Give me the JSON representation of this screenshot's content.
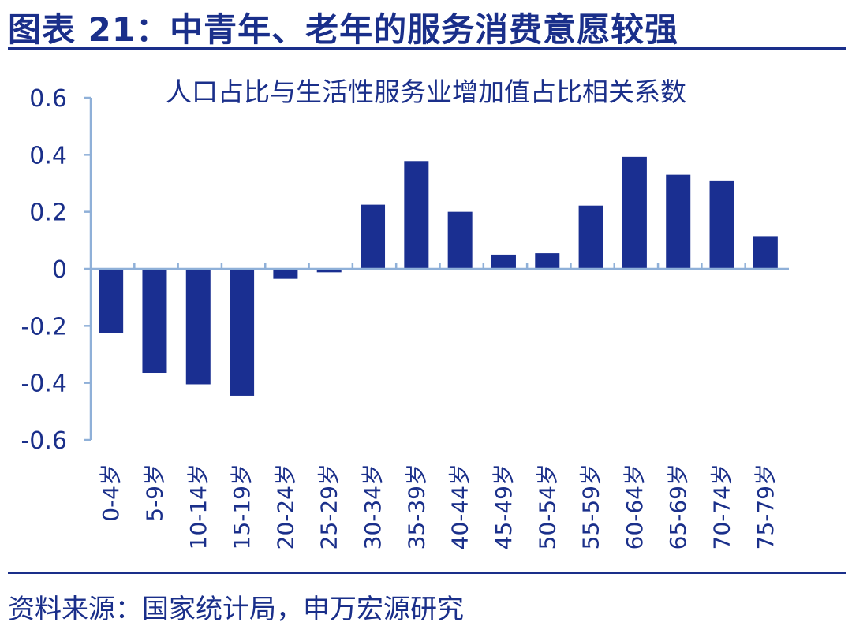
{
  "header": {
    "figure_title": "图表 21：中青年、老年的服务消费意愿较强"
  },
  "footer": {
    "source": "资料来源：国家统计局，申万宏源研究"
  },
  "colors": {
    "bar": "#1a2f91",
    "text": "#1a2f8a",
    "axis": "#8fb0d8"
  },
  "chart_data": {
    "type": "bar",
    "title": "人口占比与生活性服务业增加值占比相关系数",
    "categories": [
      "0-4岁",
      "5-9岁",
      "10-14岁",
      "15-19岁",
      "20-24岁",
      "25-29岁",
      "30-34岁",
      "35-39岁",
      "40-44岁",
      "45-49岁",
      "50-54岁",
      "55-59岁",
      "60-64岁",
      "65-69岁",
      "70-74岁",
      "75-79岁"
    ],
    "values": [
      -0.225,
      -0.365,
      -0.405,
      -0.445,
      -0.035,
      -0.012,
      0.225,
      0.378,
      0.2,
      0.05,
      0.055,
      0.222,
      0.393,
      0.33,
      0.31,
      0.115
    ],
    "ylim": [
      -0.6,
      0.6
    ],
    "yticks": [
      "0.6",
      "0.4",
      "0.2",
      "0",
      "-0.2",
      "-0.4",
      "-0.6"
    ],
    "ytick_values": [
      0.6,
      0.4,
      0.2,
      0,
      -0.2,
      -0.4,
      -0.6
    ],
    "grid": false,
    "legend": "none"
  }
}
